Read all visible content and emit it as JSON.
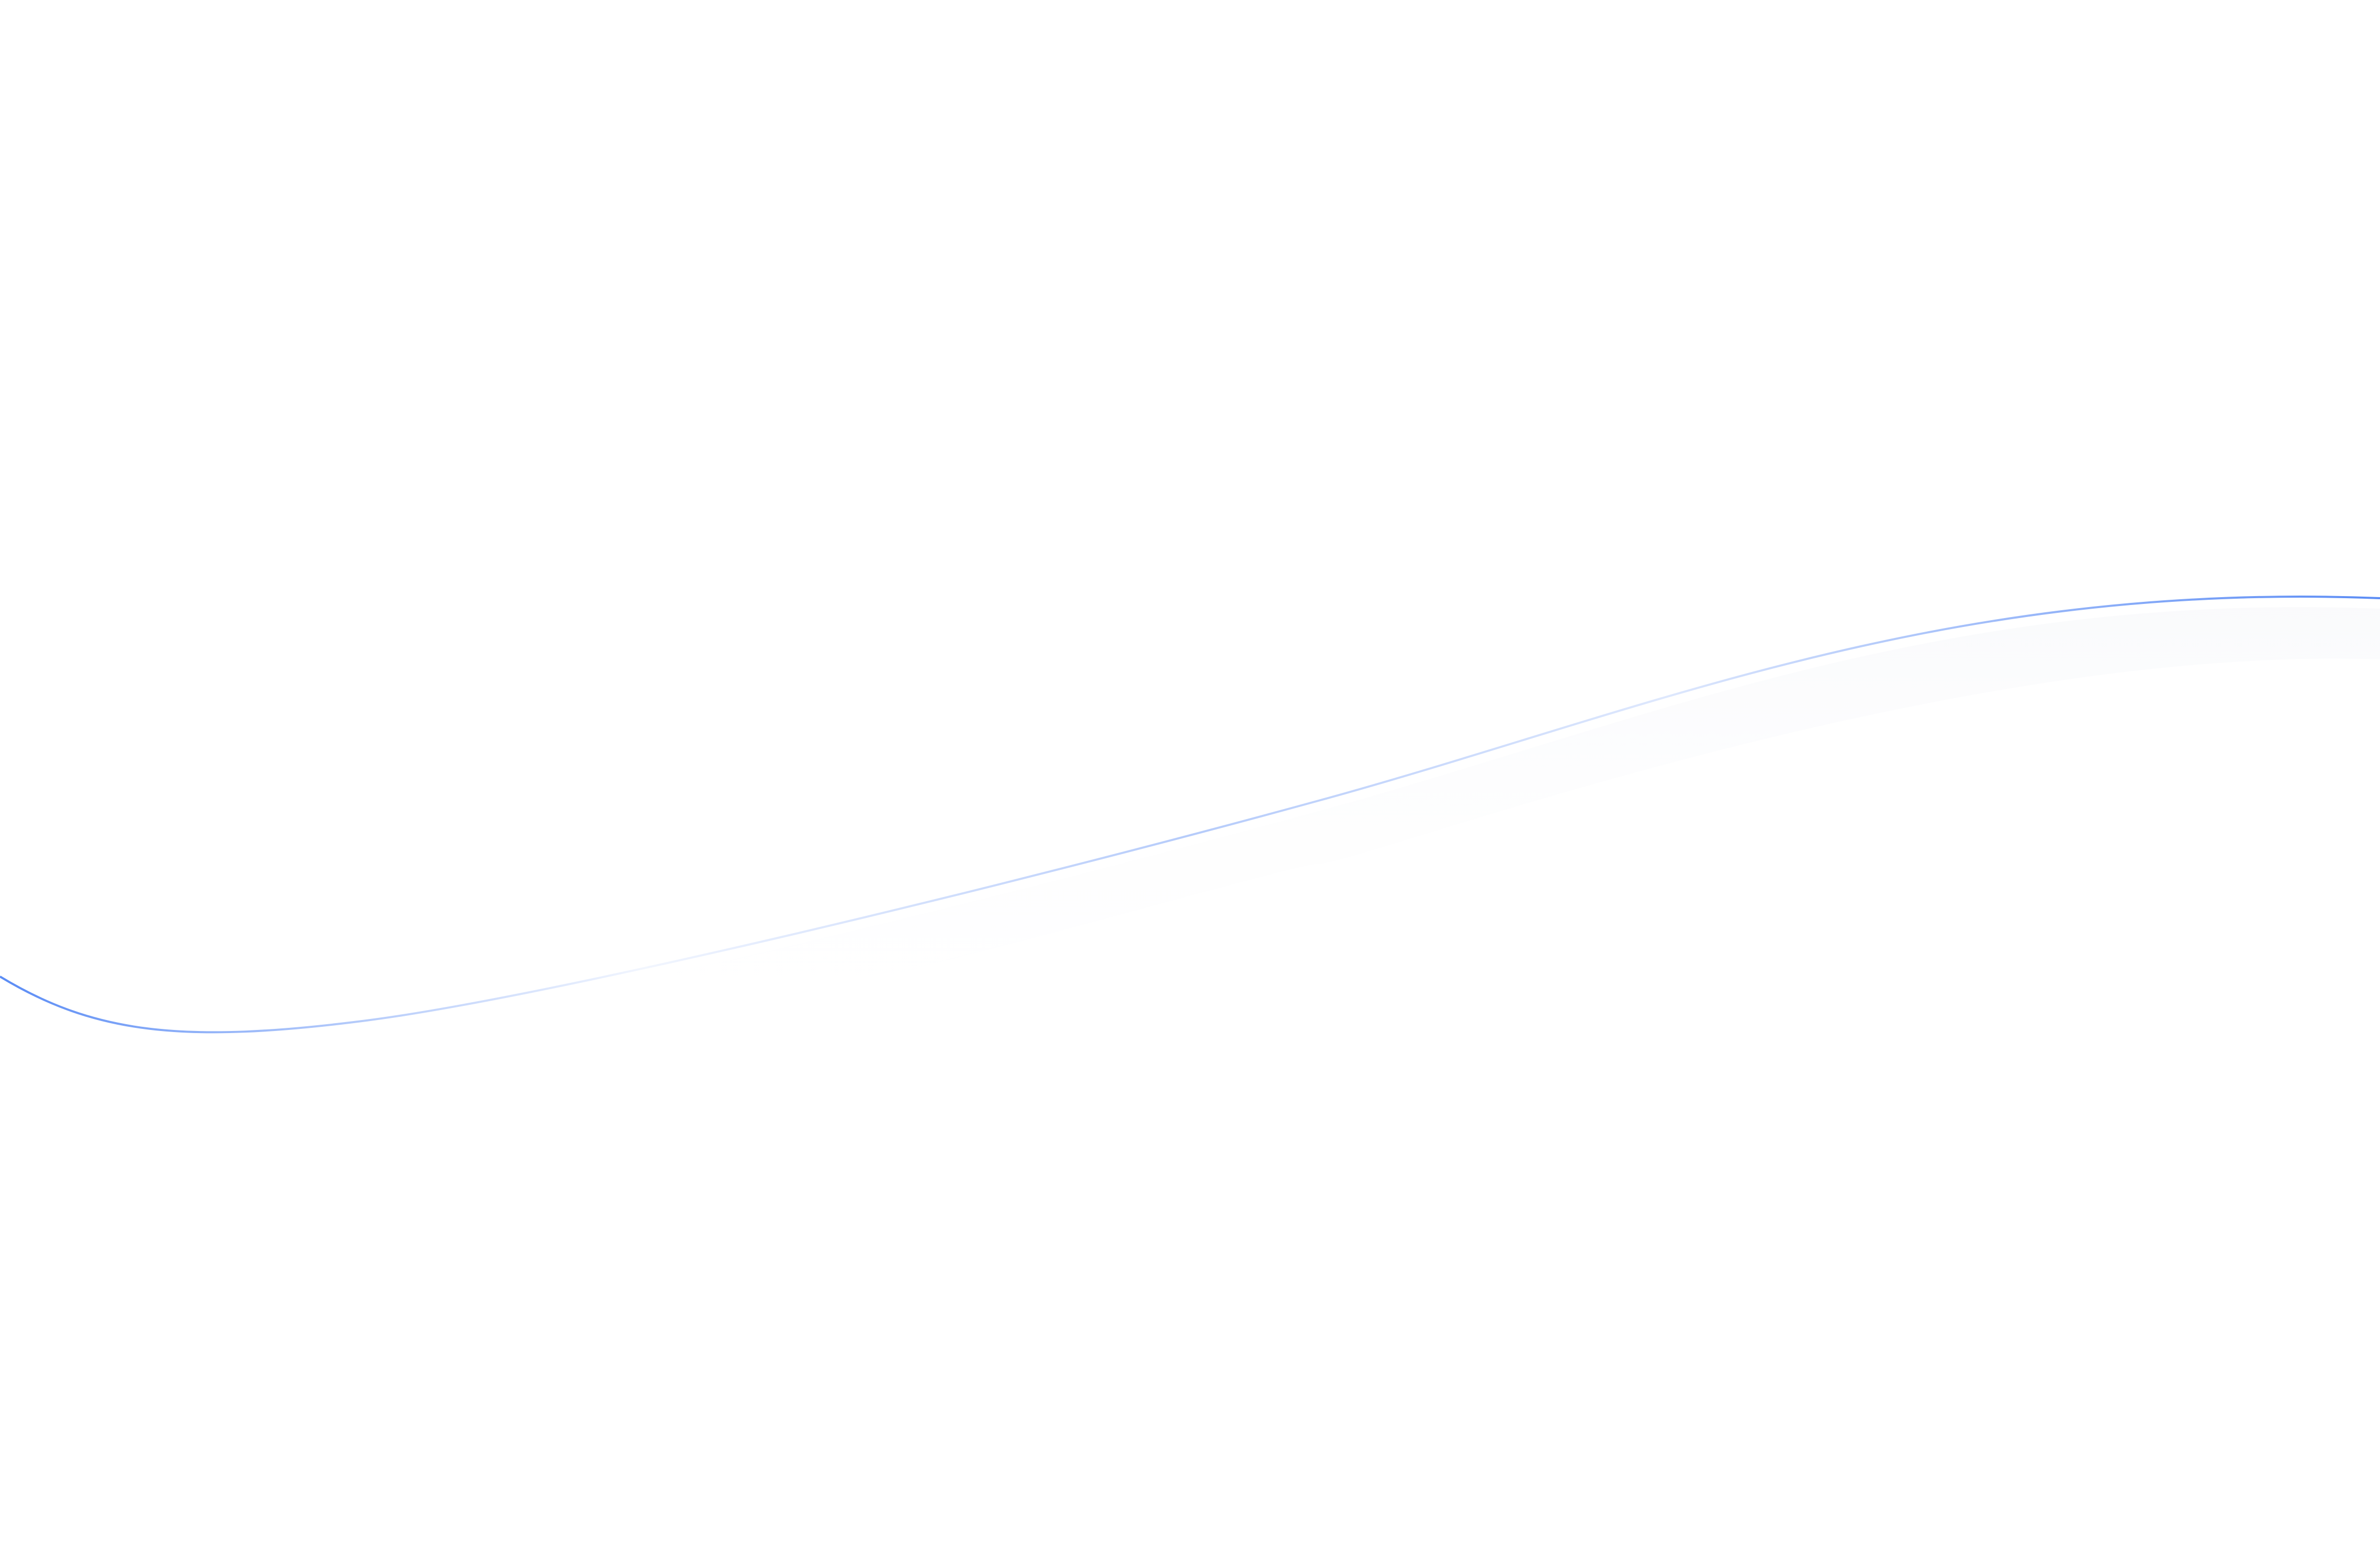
{
  "background_color": "#ffffff",
  "curve": {
    "accent_color": "#5b8cf5",
    "fade_color": "#ffffff",
    "style": "gradient-stroke-wave"
  }
}
